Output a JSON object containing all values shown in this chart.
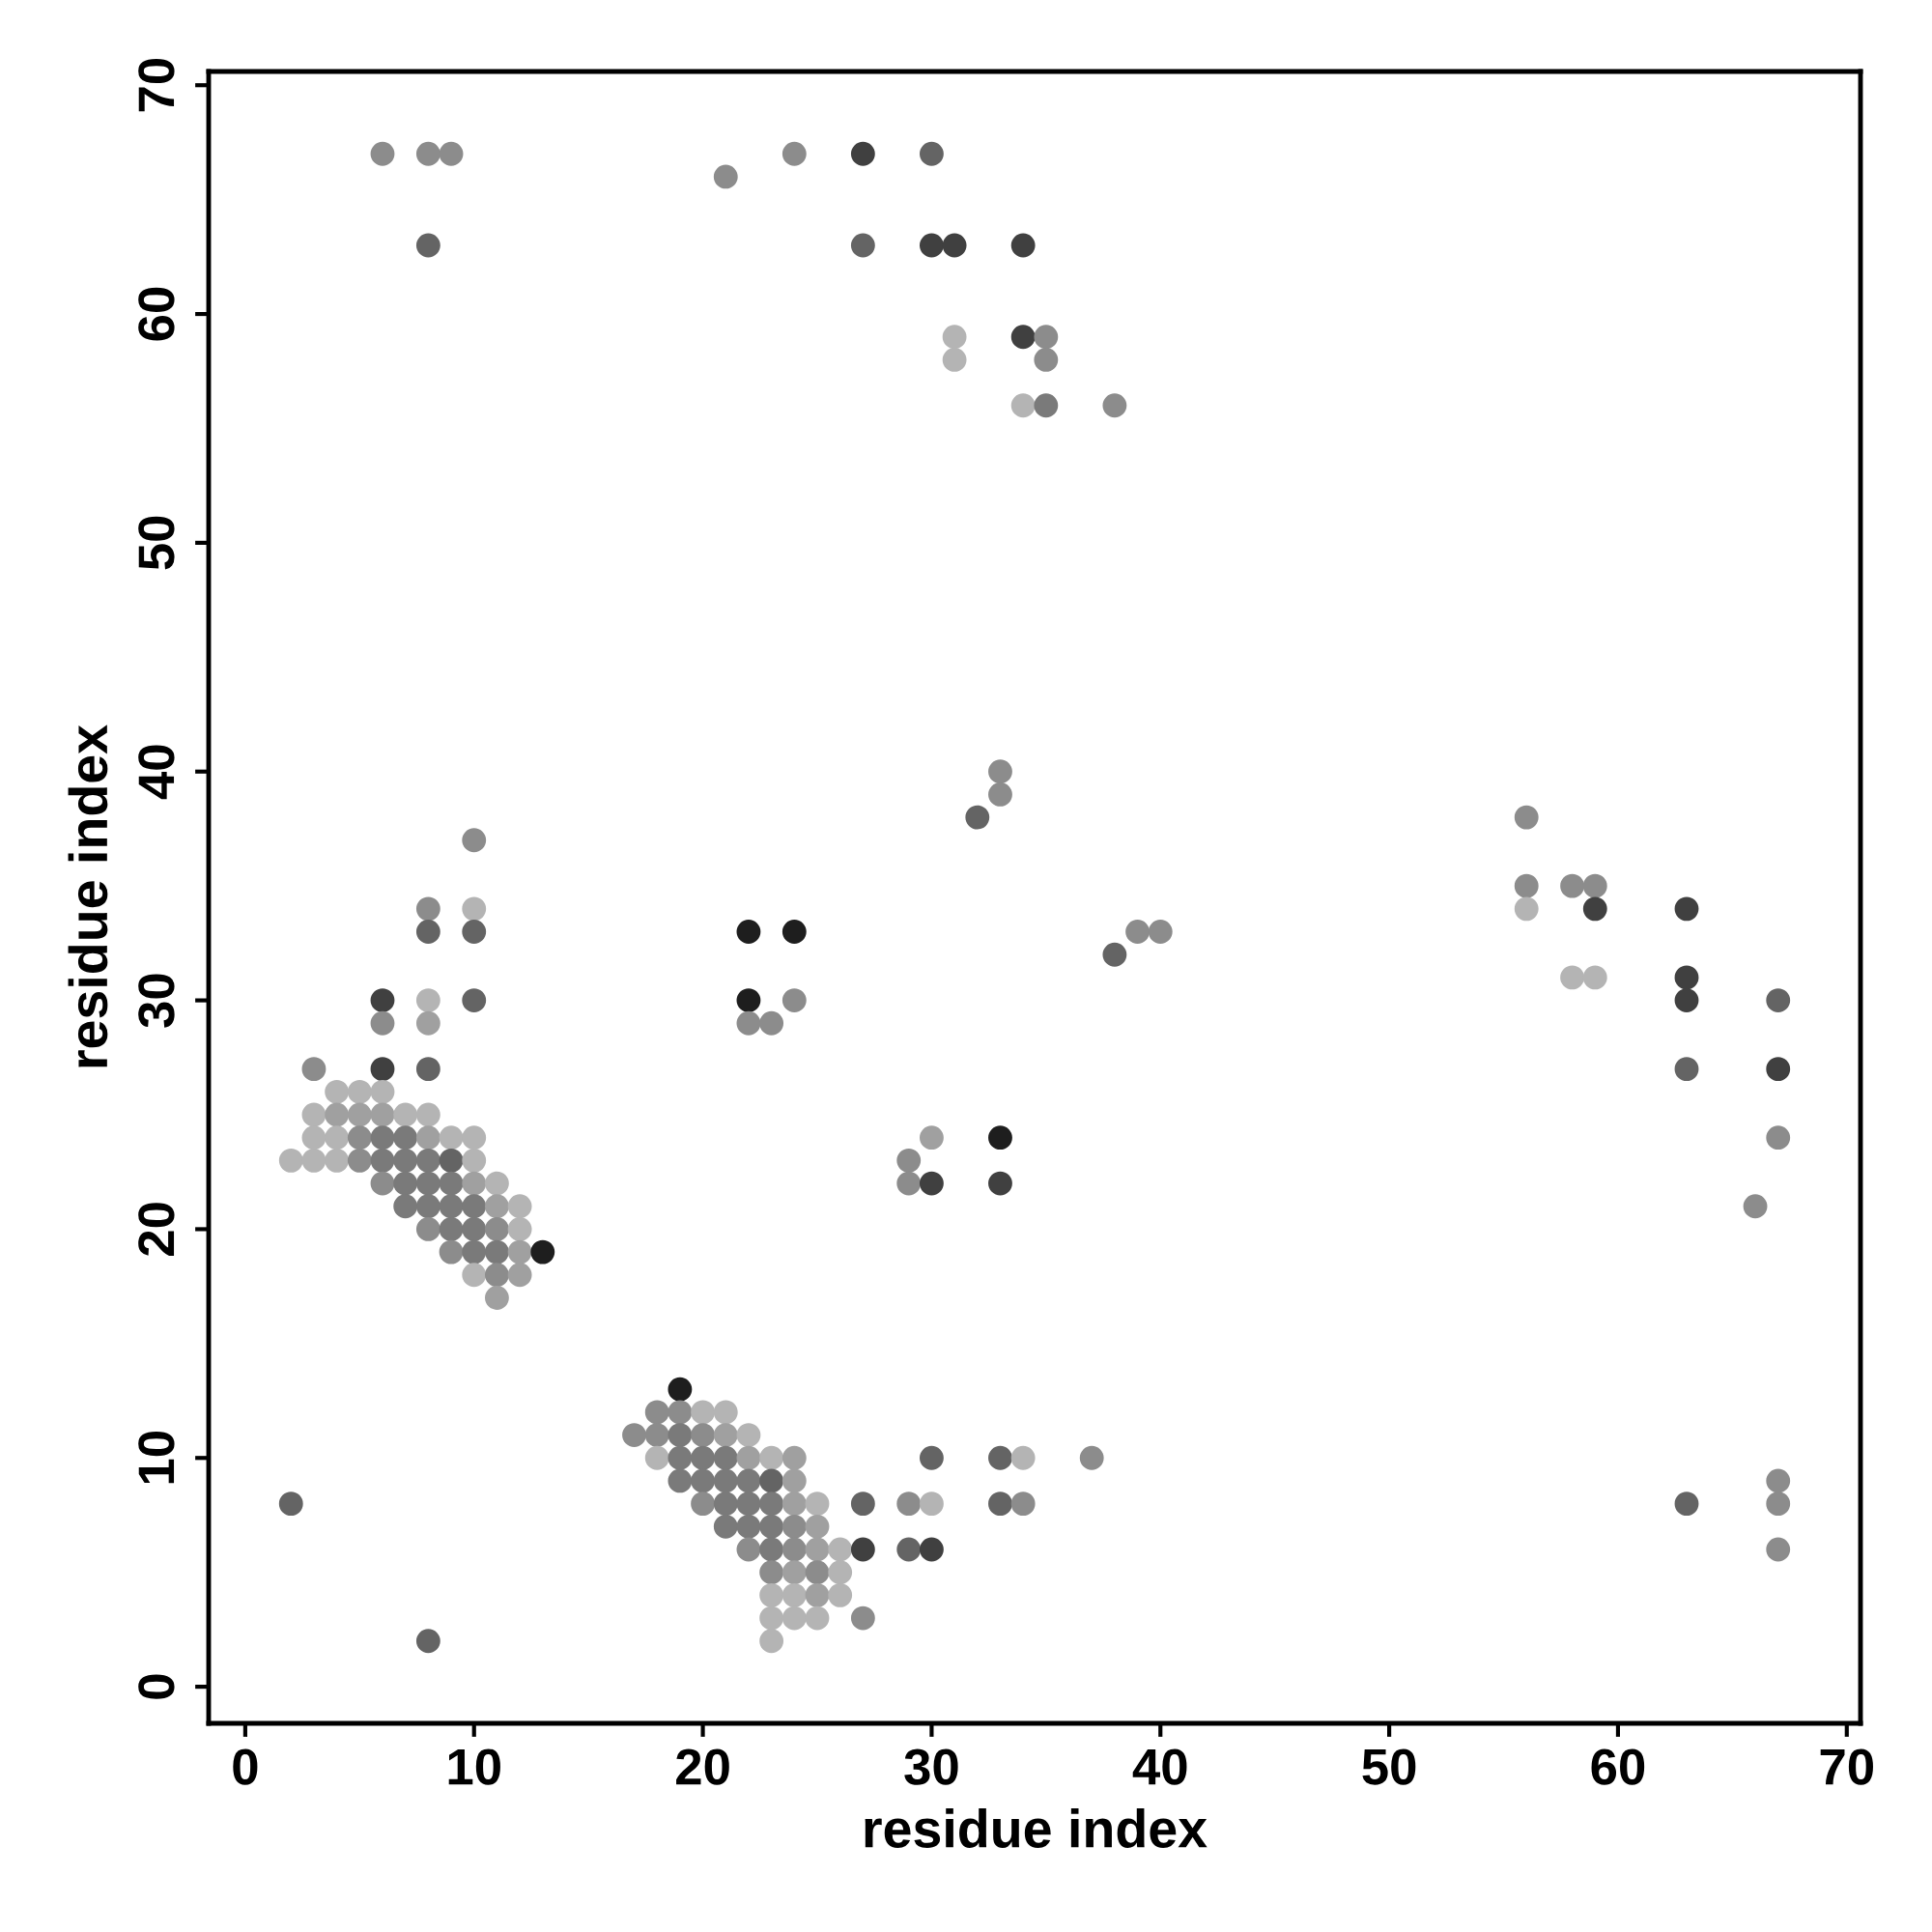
{
  "chart_data": {
    "type": "scatter",
    "xlabel": "residue index",
    "ylabel": "residue index",
    "xlim": [
      -1.6,
      70.6
    ],
    "ylim": [
      -1.6,
      70.6
    ],
    "xticks": [
      0,
      10,
      20,
      30,
      40,
      50,
      60,
      70
    ],
    "yticks": [
      0,
      10,
      20,
      30,
      40,
      50,
      60,
      70
    ],
    "grid": false,
    "marker": "circle",
    "series": [
      {
        "x": [
          3,
          6,
          8,
          4,
          5,
          6,
          3,
          4,
          5,
          6,
          7,
          8,
          3,
          4,
          5,
          6,
          7,
          8,
          9,
          10,
          2,
          3,
          4,
          5,
          6,
          7,
          8,
          9,
          10,
          6,
          7,
          8,
          9,
          10,
          11,
          7,
          8,
          9,
          10,
          11,
          12,
          8,
          9,
          10,
          11,
          12,
          9,
          10,
          11,
          12,
          13,
          10,
          11,
          12,
          11,
          19,
          18,
          19,
          20,
          21,
          17,
          18,
          19,
          20,
          21,
          22,
          18,
          19,
          20,
          21,
          22,
          23,
          24,
          19,
          20,
          21,
          22,
          23,
          24,
          20,
          21,
          22,
          23,
          24,
          25,
          27,
          21,
          22,
          23,
          24,
          25,
          22,
          23,
          24,
          25,
          26,
          27,
          23,
          24,
          25,
          26,
          23,
          24,
          25,
          26,
          23,
          24,
          25,
          27,
          23,
          6,
          8,
          9,
          8,
          21,
          24,
          27,
          30,
          27,
          30,
          31,
          34,
          31,
          31,
          34,
          35,
          35,
          34,
          35,
          38,
          33,
          33,
          32,
          38,
          39,
          40,
          10,
          8,
          8,
          10,
          10,
          6,
          8,
          10,
          6,
          8,
          22,
          24,
          22,
          24,
          22,
          23,
          29,
          30,
          29,
          30,
          33,
          33,
          56,
          56,
          56,
          58,
          59,
          59,
          58,
          59,
          63,
          63,
          63,
          63,
          67,
          67,
          67,
          66,
          2,
          8,
          30,
          33,
          34,
          37,
          29,
          30,
          33,
          34,
          29,
          30,
          63,
          67,
          67,
          67
        ],
        "values": [
          27,
          27,
          27,
          26,
          26,
          26,
          25,
          25,
          25,
          25,
          25,
          25,
          24,
          24,
          24,
          24,
          24,
          24,
          24,
          24,
          23,
          23,
          23,
          23,
          23,
          23,
          23,
          23,
          23,
          22,
          22,
          22,
          22,
          22,
          22,
          21,
          21,
          21,
          21,
          21,
          21,
          20,
          20,
          20,
          20,
          20,
          19,
          19,
          19,
          19,
          19,
          18,
          18,
          18,
          17,
          13,
          12,
          12,
          12,
          12,
          11,
          11,
          11,
          11,
          11,
          11,
          10,
          10,
          10,
          10,
          10,
          10,
          10,
          9,
          9,
          9,
          9,
          9,
          9,
          8,
          8,
          8,
          8,
          8,
          8,
          8,
          7,
          7,
          7,
          7,
          7,
          6,
          6,
          6,
          6,
          6,
          6,
          5,
          5,
          5,
          5,
          4,
          4,
          4,
          4,
          3,
          3,
          3,
          3,
          2,
          67,
          67,
          67,
          63,
          66,
          67,
          67,
          67,
          63,
          63,
          63,
          63,
          59,
          58,
          59,
          59,
          58,
          56,
          56,
          56,
          40,
          39,
          38,
          32,
          33,
          33,
          37,
          34,
          33,
          34,
          33,
          30,
          30,
          30,
          29,
          29,
          33,
          33,
          30,
          30,
          29,
          29,
          23,
          24,
          22,
          22,
          24,
          22,
          38,
          35,
          34,
          35,
          35,
          34,
          31,
          31,
          34,
          31,
          30,
          27,
          30,
          27,
          24,
          21,
          8,
          2,
          10,
          10,
          10,
          10,
          8,
          8,
          8,
          8,
          6,
          6,
          8,
          9,
          8,
          6
        ],
        "colors": [
          "#8c8c8c",
          "#404040",
          "#646464",
          "#b4b4b4",
          "#b4b4b4",
          "#b4b4b4",
          "#b4b4b4",
          "#a0a0a0",
          "#a0a0a0",
          "#a0a0a0",
          "#b4b4b4",
          "#b4b4b4",
          "#b4b4b4",
          "#b4b4b4",
          "#8c8c8c",
          "#7a7a7a",
          "#7a7a7a",
          "#a0a0a0",
          "#b4b4b4",
          "#b4b4b4",
          "#b4b4b4",
          "#b4b4b4",
          "#b4b4b4",
          "#8c8c8c",
          "#7a7a7a",
          "#7a7a7a",
          "#7a7a7a",
          "#646464",
          "#b4b4b4",
          "#8c8c8c",
          "#7a7a7a",
          "#7a7a7a",
          "#7a7a7a",
          "#a0a0a0",
          "#b4b4b4",
          "#7a7a7a",
          "#7a7a7a",
          "#7a7a7a",
          "#7a7a7a",
          "#a0a0a0",
          "#b4b4b4",
          "#8c8c8c",
          "#7a7a7a",
          "#7a7a7a",
          "#8c8c8c",
          "#b4b4b4",
          "#8c8c8c",
          "#7a7a7a",
          "#7a7a7a",
          "#a0a0a0",
          "#1e1e1e",
          "#b4b4b4",
          "#8c8c8c",
          "#a0a0a0",
          "#a0a0a0",
          "#1e1e1e",
          "#8c8c8c",
          "#8c8c8c",
          "#b4b4b4",
          "#b4b4b4",
          "#8c8c8c",
          "#8c8c8c",
          "#7a7a7a",
          "#8c8c8c",
          "#a0a0a0",
          "#b4b4b4",
          "#b4b4b4",
          "#7a7a7a",
          "#7a7a7a",
          "#7a7a7a",
          "#a0a0a0",
          "#b4b4b4",
          "#a0a0a0",
          "#7a7a7a",
          "#7a7a7a",
          "#7a7a7a",
          "#7a7a7a",
          "#646464",
          "#a0a0a0",
          "#8c8c8c",
          "#7a7a7a",
          "#7a7a7a",
          "#7a7a7a",
          "#a0a0a0",
          "#b4b4b4",
          "#646464",
          "#7a7a7a",
          "#7a7a7a",
          "#7a7a7a",
          "#8c8c8c",
          "#a0a0a0",
          "#8c8c8c",
          "#7a7a7a",
          "#8c8c8c",
          "#a0a0a0",
          "#b4b4b4",
          "#404040",
          "#8c8c8c",
          "#a0a0a0",
          "#8c8c8c",
          "#b4b4b4",
          "#b4b4b4",
          "#b4b4b4",
          "#a0a0a0",
          "#b4b4b4",
          "#b4b4b4",
          "#b4b4b4",
          "#b4b4b4",
          "#8c8c8c",
          "#b4b4b4",
          "#8c8c8c",
          "#8c8c8c",
          "#8c8c8c",
          "#646464",
          "#8c8c8c",
          "#8c8c8c",
          "#404040",
          "#646464",
          "#646464",
          "#404040",
          "#404040",
          "#404040",
          "#b4b4b4",
          "#b4b4b4",
          "#404040",
          "#8c8c8c",
          "#8c8c8c",
          "#b4b4b4",
          "#7a7a7a",
          "#8c8c8c",
          "#8c8c8c",
          "#8c8c8c",
          "#646464",
          "#646464",
          "#8c8c8c",
          "#8c8c8c",
          "#8c8c8c",
          "#8c8c8c",
          "#646464",
          "#b4b4b4",
          "#646464",
          "#404040",
          "#b4b4b4",
          "#646464",
          "#8c8c8c",
          "#a0a0a0",
          "#1e1e1e",
          "#1e1e1e",
          "#1e1e1e",
          "#8c8c8c",
          "#8c8c8c",
          "#8c8c8c",
          "#8c8c8c",
          "#a0a0a0",
          "#8c8c8c",
          "#404040",
          "#1e1e1e",
          "#404040",
          "#8c8c8c",
          "#8c8c8c",
          "#b4b4b4",
          "#8c8c8c",
          "#8c8c8c",
          "#404040",
          "#b4b4b4",
          "#b4b4b4",
          "#404040",
          "#404040",
          "#404040",
          "#646464",
          "#646464",
          "#404040",
          "#8c8c8c",
          "#8c8c8c",
          "#646464",
          "#646464",
          "#646464",
          "#646464",
          "#b4b4b4",
          "#8c8c8c",
          "#8c8c8c",
          "#b4b4b4",
          "#646464",
          "#8c8c8c",
          "#646464",
          "#404040",
          "#646464",
          "#8c8c8c",
          "#8c8c8c",
          "#8c8c8c"
        ]
      }
    ]
  }
}
